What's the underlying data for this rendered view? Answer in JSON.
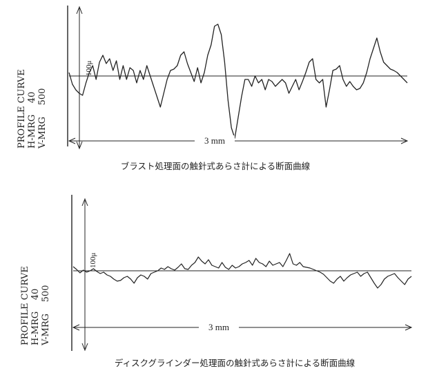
{
  "chart_data": [
    {
      "type": "line",
      "title": "ブラスト処理面の触針式あらさ計による断面曲線",
      "ylabel_lines": [
        "PROFILE CURVE",
        "H-MRG    40",
        "V-MRG    500"
      ],
      "vertical_scale_label": "100μ",
      "horizontal_scale_label": "3 mm",
      "x_range_mm": [
        0,
        3.0
      ],
      "series": [
        {
          "x": [
            0.0,
            0.03,
            0.06,
            0.09,
            0.12,
            0.15,
            0.18,
            0.21,
            0.24,
            0.27,
            0.3,
            0.33,
            0.36,
            0.39,
            0.42,
            0.45,
            0.48,
            0.51,
            0.54,
            0.57,
            0.6,
            0.63,
            0.66,
            0.69,
            0.72,
            0.75,
            0.78,
            0.81,
            0.84,
            0.87,
            0.9,
            0.93,
            0.96,
            0.99,
            1.02,
            1.05,
            1.08,
            1.11,
            1.14,
            1.17,
            1.2,
            1.23,
            1.26,
            1.29,
            1.32,
            1.35,
            1.38,
            1.41,
            1.44,
            1.47,
            1.5,
            1.53,
            1.56,
            1.59,
            1.62,
            1.65,
            1.68,
            1.71,
            1.74,
            1.77,
            1.8,
            1.83,
            1.86,
            1.89,
            1.92,
            1.95,
            1.98,
            2.01,
            2.04,
            2.07,
            2.1,
            2.13,
            2.16,
            2.19,
            2.22,
            2.25,
            2.28,
            2.31,
            2.34,
            2.37,
            2.4,
            2.43,
            2.46,
            2.49,
            2.52,
            2.55,
            2.58,
            2.61,
            2.64,
            2.67,
            2.7,
            2.73,
            2.76,
            2.79,
            2.82,
            2.85,
            2.88,
            2.91,
            2.94,
            2.97,
            3.0
          ],
          "y": [
            5,
            -12,
            -20,
            -25,
            -28,
            -10,
            5,
            15,
            -5,
            20,
            30,
            18,
            25,
            8,
            22,
            -5,
            15,
            -5,
            12,
            8,
            -10,
            8,
            -5,
            15,
            0,
            -15,
            -30,
            -45,
            -25,
            -5,
            8,
            10,
            15,
            30,
            35,
            18,
            5,
            -8,
            12,
            -10,
            5,
            30,
            45,
            72,
            75,
            60,
            20,
            -35,
            -75,
            -90,
            -60,
            -30,
            -5,
            -5,
            -15,
            0,
            -10,
            -5,
            -20,
            -5,
            -8,
            -15,
            -10,
            -5,
            -10,
            -25,
            -15,
            -5,
            -20,
            -8,
            5,
            20,
            25,
            -5,
            -10,
            -5,
            -45,
            -20,
            8,
            10,
            15,
            -5,
            -15,
            -8,
            -15,
            -20,
            -18,
            -10,
            5,
            25,
            40,
            55,
            35,
            20,
            15,
            10,
            8,
            5,
            0,
            -5,
            -10
          ]
        }
      ]
    },
    {
      "type": "line",
      "title": "ディスクグラインダー処理面の触針式あらさ計による断面曲線",
      "ylabel_lines": [
        "PROFILE CURVE",
        "H-MRG    40",
        "V-MRG    500"
      ],
      "vertical_scale_label": "100μ",
      "horizontal_scale_label": "3 mm",
      "x_range_mm": [
        0,
        3.0
      ],
      "series": [
        {
          "x": [
            0.0,
            0.03,
            0.06,
            0.09,
            0.12,
            0.15,
            0.18,
            0.21,
            0.24,
            0.27,
            0.3,
            0.33,
            0.36,
            0.39,
            0.42,
            0.45,
            0.48,
            0.51,
            0.54,
            0.57,
            0.6,
            0.63,
            0.66,
            0.69,
            0.72,
            0.75,
            0.78,
            0.81,
            0.84,
            0.87,
            0.9,
            0.93,
            0.96,
            0.99,
            1.02,
            1.05,
            1.08,
            1.11,
            1.14,
            1.17,
            1.2,
            1.23,
            1.26,
            1.29,
            1.32,
            1.35,
            1.38,
            1.41,
            1.44,
            1.47,
            1.5,
            1.53,
            1.56,
            1.59,
            1.62,
            1.65,
            1.68,
            1.71,
            1.74,
            1.77,
            1.8,
            1.83,
            1.86,
            1.89,
            1.92,
            1.95,
            1.98,
            2.01,
            2.04,
            2.07,
            2.1,
            2.13,
            2.16,
            2.19,
            2.22,
            2.25,
            2.28,
            2.31,
            2.34,
            2.37,
            2.4,
            2.43,
            2.46,
            2.49,
            2.52,
            2.55,
            2.58,
            2.61,
            2.64,
            2.67,
            2.7,
            2.73,
            2.76,
            2.79,
            2.82,
            2.85,
            2.88,
            2.91,
            2.94,
            2.97,
            3.0
          ],
          "y": [
            6,
            2,
            -3,
            1,
            -2,
            0,
            3,
            -1,
            -4,
            -2,
            -6,
            -8,
            -12,
            -15,
            -14,
            -10,
            -8,
            -12,
            -18,
            -10,
            -6,
            -8,
            -12,
            -4,
            -2,
            0,
            4,
            2,
            6,
            3,
            1,
            5,
            10,
            3,
            2,
            8,
            12,
            20,
            14,
            10,
            16,
            8,
            6,
            4,
            12,
            5,
            2,
            8,
            4,
            6,
            10,
            12,
            15,
            8,
            18,
            12,
            10,
            6,
            14,
            8,
            10,
            12,
            6,
            15,
            25,
            10,
            8,
            12,
            6,
            5,
            4,
            2,
            0,
            -2,
            -5,
            -10,
            -15,
            -18,
            -12,
            -8,
            -15,
            -10,
            -6,
            -4,
            -2,
            -8,
            -4,
            -2,
            -10,
            -18,
            -25,
            -20,
            -12,
            -8,
            -6,
            -4,
            -10,
            -15,
            -20,
            -12,
            -8
          ]
        }
      ]
    }
  ]
}
